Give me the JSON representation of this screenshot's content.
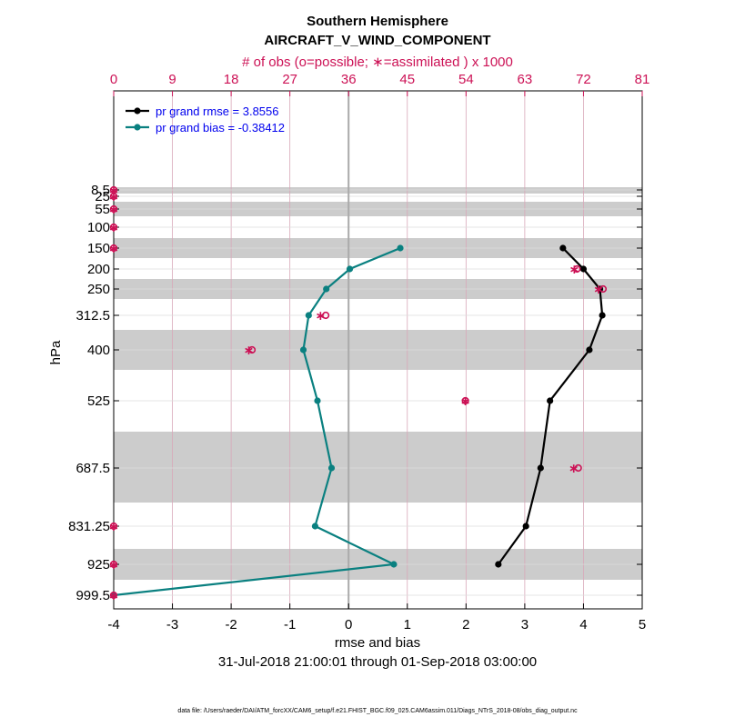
{
  "chart_data": {
    "type": "line",
    "title": "Southern Hemisphere",
    "subtitle": "AIRCRAFT_V_WIND_COMPONENT",
    "top_axis_label": "# of obs (o=possible; ∗=assimilated ) x 1000",
    "top_ticks": [
      "0",
      "9",
      "18",
      "27",
      "36",
      "45",
      "54",
      "63",
      "72",
      "81"
    ],
    "top_range": [
      0,
      81
    ],
    "xlabel": "rmse and bias",
    "x_ticks": [
      "-4",
      "-3",
      "-2",
      "-1",
      "0",
      "1",
      "2",
      "3",
      "4",
      "5"
    ],
    "xlim": [
      -4,
      5
    ],
    "ylabel": "hPa",
    "y_levels": [
      8.5,
      25,
      55,
      100,
      150,
      200,
      250,
      312.5,
      400,
      525,
      687.5,
      831.25,
      925,
      999.5
    ],
    "y_level_labels": [
      "8.5",
      "25",
      "55",
      "100",
      "150",
      "200",
      "250",
      "312.5",
      "400",
      "525",
      "687.5",
      "831.25",
      "925",
      "999.5"
    ],
    "grid": true,
    "date_range": "31-Jul-2018 21:00:01 through 01-Sep-2018 03:00:00",
    "footnote": "data file: /Users/raeder/DAI/ATM_forcXX/CAM6_setup/f.e21.FHIST_BGC.f09_025.CAM6assim.011/Diags_NTrS_2018-08/obs_diag_output.nc",
    "legend_position": "top-left",
    "series": [
      {
        "name": "pr grand rmse = 3.8556",
        "color": "#000000",
        "levels": [
          150,
          200,
          250,
          312.5,
          400,
          525,
          687.5,
          831.25,
          925
        ],
        "values": [
          3.65,
          4.0,
          4.28,
          4.32,
          4.1,
          3.43,
          3.27,
          3.02,
          2.55
        ]
      },
      {
        "name": "pr grand bias = -0.38412",
        "color": "#0a8080",
        "levels": [
          150,
          200,
          250,
          312.5,
          400,
          525,
          687.5,
          831.25,
          925,
          999.5
        ],
        "values": [
          0.88,
          0.02,
          -0.38,
          -0.68,
          -0.77,
          -0.53,
          -0.29,
          -0.57,
          0.77,
          -4.0
        ]
      }
    ],
    "obs_counts": {
      "color": "#cc1155",
      "levels": [
        8.5,
        25,
        55,
        100,
        150,
        200,
        250,
        312.5,
        400,
        525,
        687.5,
        831.25,
        925,
        999.5
      ],
      "possible_thousands": [
        0,
        0,
        0,
        0,
        0,
        71.0,
        75.0,
        32.5,
        21.2,
        53.9,
        71.2,
        0,
        0,
        0
      ],
      "assimilated_thousands": [
        0,
        0,
        0,
        0,
        0,
        70.6,
        74.3,
        31.7,
        20.7,
        53.9,
        70.5,
        0,
        0,
        0
      ]
    }
  }
}
